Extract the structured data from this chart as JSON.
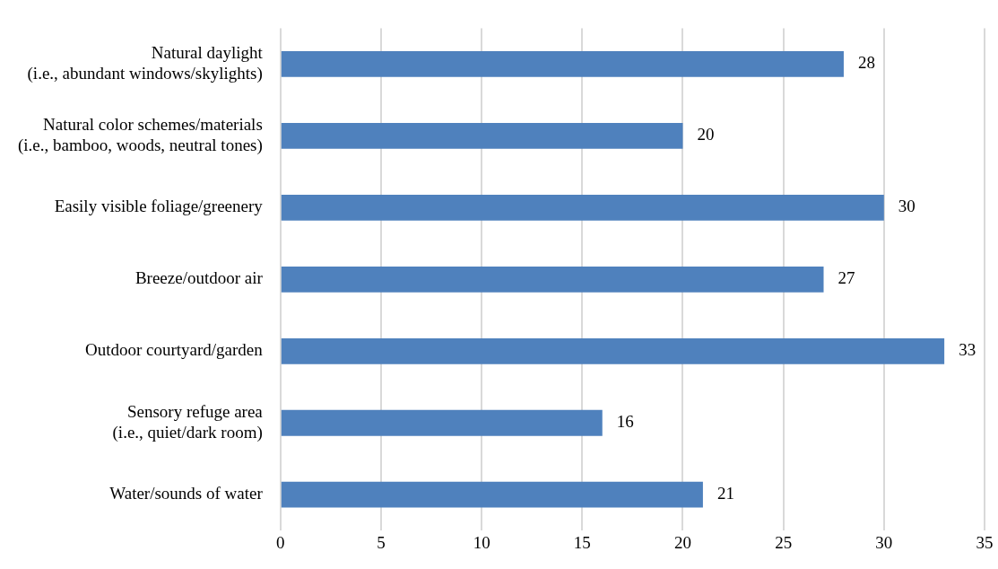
{
  "chart_data": {
    "type": "bar",
    "orientation": "horizontal",
    "categories": [
      "Natural daylight\n(i.e., abundant windows/skylights)",
      "Natural color schemes/materials\n(i.e., bamboo, woods, neutral tones)",
      "Easily visible foliage/greenery",
      "Breeze/outdoor air",
      "Outdoor courtyard/garden",
      "Sensory refuge area\n(i.e., quiet/dark room)",
      "Water/sounds of water"
    ],
    "values": [
      28,
      20,
      30,
      27,
      33,
      16,
      21
    ],
    "color": "#4f81bd",
    "xlim": [
      0,
      35
    ],
    "xticks": [
      0,
      5,
      10,
      15,
      20,
      25,
      30,
      35
    ],
    "grid": "x",
    "legend": false,
    "data_labels": true
  }
}
